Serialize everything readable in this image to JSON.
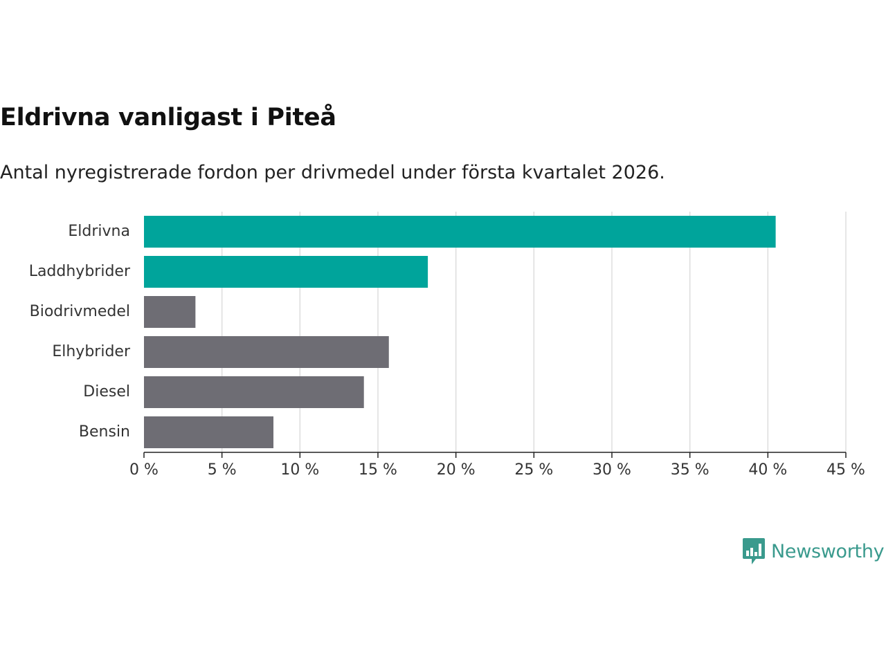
{
  "title": "Eldrivna vanligast i Piteå",
  "subtitle": "Antal nyregistrerade fordon per drivmedel under första kvartalet 2026.",
  "brand": {
    "name": "Newsworthy",
    "color": "#3a9a8d"
  },
  "chart_data": {
    "type": "bar",
    "orientation": "horizontal",
    "title": "Eldrivna vanligast i Piteå",
    "subtitle": "Antal nyregistrerade fordon per drivmedel under första kvartalet 2026.",
    "categories": [
      "Eldrivna",
      "Laddhybrider",
      "Biodrivmedel",
      "Elhybrider",
      "Diesel",
      "Bensin"
    ],
    "values": [
      40.5,
      18.2,
      3.3,
      15.7,
      14.1,
      8.3
    ],
    "unit": "%",
    "highlighted": [
      true,
      true,
      false,
      false,
      false,
      false
    ],
    "colors": {
      "highlight": "#00a49b",
      "default": "#6e6d74",
      "grid": "#dddddd",
      "axis": "#222222"
    },
    "xlim": [
      0,
      45
    ],
    "xticks": [
      0,
      5,
      10,
      15,
      20,
      25,
      30,
      35,
      40,
      45
    ],
    "xtick_labels": [
      "0 %",
      "5 %",
      "10 %",
      "15 %",
      "20 %",
      "25 %",
      "30 %",
      "35 %",
      "40 %",
      "45 %"
    ],
    "xlabel": "",
    "ylabel": "",
    "grid": true
  }
}
